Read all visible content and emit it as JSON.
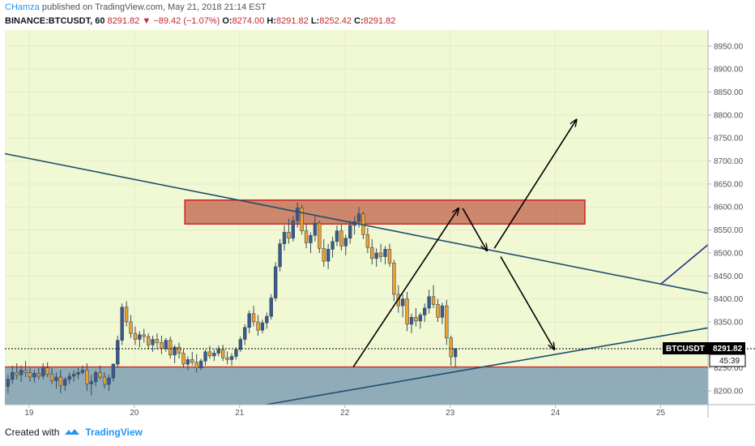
{
  "header": {
    "author": "CHamza",
    "published_text": "published on TradingView.com, May 21, 2018 21:14 EST",
    "symbol": "BINANCE:BTCUSDT, 60",
    "last": "8291.82",
    "down_arrow": "▼",
    "change": "−89.42 (−1.07%)",
    "open_label": "O:",
    "open": "8274.00",
    "high_label": "H:",
    "high": "8291.82",
    "low_label": "L:",
    "low": "8252.42",
    "close_label": "C:",
    "close": "8291.82"
  },
  "price_label": {
    "symbol": "BTCUSDT",
    "price": "8291.82",
    "countdown": "45:39"
  },
  "footer": {
    "created_with": "Created with",
    "brand": "TradingView",
    "logo_icon": "tradingview-logo-icon"
  },
  "colors": {
    "plot_bg": "#f0f9d3",
    "up": "#3a5a8c",
    "down": "#f0a030",
    "resistance_fill": "#c0604a",
    "resistance_border": "#cc2222",
    "support_fill": "#7f9fb3",
    "trend_line": "#1f4e6e"
  },
  "chart_data": {
    "type": "candlestick",
    "x_ticks": [
      "19",
      "20",
      "21",
      "22",
      "23",
      "24",
      "25"
    ],
    "y_ticks": [
      8200,
      8250,
      8300,
      8350,
      8400,
      8450,
      8500,
      8550,
      8600,
      8650,
      8700,
      8750,
      8800,
      8850,
      8900,
      8950
    ],
    "y_tick_labels": [
      "8200.00",
      "8250.00",
      "8300.00",
      "8350.00",
      "8400.00",
      "8450.00",
      "8500.00",
      "8550.00",
      "8600.00",
      "8650.00",
      "8700.00",
      "8750.00",
      "8800.00",
      "8850.00",
      "8900.00",
      "8950.00"
    ],
    "ylim": [
      8170,
      8985
    ],
    "x_range_days": [
      18.77,
      25.45
    ],
    "candle_interval_hours": 1,
    "first_candle_day": 18.8,
    "candles": [
      [
        8210,
        8235,
        8195,
        8225
      ],
      [
        8225,
        8255,
        8215,
        8240
      ],
      [
        8240,
        8260,
        8225,
        8235
      ],
      [
        8235,
        8255,
        8220,
        8245
      ],
      [
        8245,
        8265,
        8230,
        8240
      ],
      [
        8240,
        8252,
        8220,
        8230
      ],
      [
        8230,
        8245,
        8218,
        8238
      ],
      [
        8238,
        8250,
        8225,
        8232
      ],
      [
        8232,
        8260,
        8225,
        8250
      ],
      [
        8250,
        8262,
        8230,
        8236
      ],
      [
        8236,
        8250,
        8215,
        8222
      ],
      [
        8222,
        8240,
        8205,
        8230
      ],
      [
        8230,
        8245,
        8195,
        8212
      ],
      [
        8212,
        8230,
        8200,
        8225
      ],
      [
        8225,
        8240,
        8215,
        8232
      ],
      [
        8232,
        8245,
        8220,
        8236
      ],
      [
        8236,
        8250,
        8225,
        8240
      ],
      [
        8240,
        8255,
        8235,
        8245
      ],
      [
        8245,
        8260,
        8200,
        8215
      ],
      [
        8215,
        8235,
        8190,
        8220
      ],
      [
        8220,
        8245,
        8210,
        8240
      ],
      [
        8240,
        8255,
        8225,
        8230
      ],
      [
        8230,
        8240,
        8205,
        8214
      ],
      [
        8214,
        8235,
        8200,
        8228
      ],
      [
        8228,
        8260,
        8220,
        8258
      ],
      [
        8258,
        8320,
        8250,
        8310
      ],
      [
        8310,
        8390,
        8300,
        8382
      ],
      [
        8382,
        8395,
        8340,
        8350
      ],
      [
        8350,
        8365,
        8315,
        8325
      ],
      [
        8325,
        8340,
        8300,
        8312
      ],
      [
        8312,
        8330,
        8295,
        8322
      ],
      [
        8322,
        8335,
        8305,
        8318
      ],
      [
        8318,
        8325,
        8290,
        8300
      ],
      [
        8300,
        8320,
        8285,
        8312
      ],
      [
        8312,
        8325,
        8290,
        8305
      ],
      [
        8305,
        8320,
        8280,
        8292
      ],
      [
        8292,
        8315,
        8285,
        8310
      ],
      [
        8310,
        8318,
        8270,
        8278
      ],
      [
        8278,
        8300,
        8260,
        8295
      ],
      [
        8295,
        8305,
        8270,
        8282
      ],
      [
        8282,
        8290,
        8250,
        8258
      ],
      [
        8258,
        8275,
        8245,
        8268
      ],
      [
        8268,
        8285,
        8255,
        8262
      ],
      [
        8262,
        8280,
        8240,
        8250
      ],
      [
        8250,
        8270,
        8245,
        8265
      ],
      [
        8265,
        8290,
        8255,
        8285
      ],
      [
        8285,
        8298,
        8270,
        8276
      ],
      [
        8276,
        8290,
        8265,
        8282
      ],
      [
        8282,
        8298,
        8275,
        8290
      ],
      [
        8290,
        8300,
        8265,
        8272
      ],
      [
        8272,
        8286,
        8258,
        8268
      ],
      [
        8268,
        8282,
        8255,
        8275
      ],
      [
        8275,
        8295,
        8268,
        8290
      ],
      [
        8290,
        8318,
        8285,
        8312
      ],
      [
        8312,
        8345,
        8300,
        8338
      ],
      [
        8338,
        8375,
        8325,
        8368
      ],
      [
        8368,
        8385,
        8340,
        8350
      ],
      [
        8350,
        8365,
        8320,
        8332
      ],
      [
        8332,
        8355,
        8325,
        8348
      ],
      [
        8348,
        8370,
        8335,
        8362
      ],
      [
        8362,
        8410,
        8355,
        8402
      ],
      [
        8402,
        8480,
        8395,
        8470
      ],
      [
        8470,
        8530,
        8460,
        8520
      ],
      [
        8520,
        8560,
        8505,
        8545
      ],
      [
        8545,
        8575,
        8520,
        8532
      ],
      [
        8532,
        8580,
        8525,
        8570
      ],
      [
        8570,
        8610,
        8555,
        8598
      ],
      [
        8598,
        8605,
        8540,
        8548
      ],
      [
        8548,
        8565,
        8510,
        8522
      ],
      [
        8522,
        8545,
        8500,
        8538
      ],
      [
        8538,
        8580,
        8525,
        8565
      ],
      [
        8565,
        8570,
        8500,
        8510
      ],
      [
        8510,
        8530,
        8470,
        8482
      ],
      [
        8482,
        8520,
        8465,
        8508
      ],
      [
        8508,
        8535,
        8490,
        8525
      ],
      [
        8525,
        8560,
        8515,
        8548
      ],
      [
        8548,
        8562,
        8505,
        8515
      ],
      [
        8515,
        8540,
        8495,
        8532
      ],
      [
        8532,
        8570,
        8520,
        8560
      ],
      [
        8560,
        8580,
        8540,
        8568
      ],
      [
        8568,
        8600,
        8555,
        8585
      ],
      [
        8585,
        8590,
        8530,
        8540
      ],
      [
        8540,
        8555,
        8500,
        8512
      ],
      [
        8512,
        8530,
        8475,
        8488
      ],
      [
        8488,
        8510,
        8470,
        8500
      ],
      [
        8500,
        8520,
        8480,
        8492
      ],
      [
        8492,
        8515,
        8475,
        8508
      ],
      [
        8508,
        8520,
        8470,
        8478
      ],
      [
        8478,
        8485,
        8395,
        8410
      ],
      [
        8410,
        8430,
        8370,
        8385
      ],
      [
        8385,
        8410,
        8360,
        8400
      ],
      [
        8400,
        8415,
        8330,
        8345
      ],
      [
        8345,
        8368,
        8325,
        8360
      ],
      [
        8360,
        8380,
        8340,
        8352
      ],
      [
        8352,
        8370,
        8335,
        8365
      ],
      [
        8365,
        8390,
        8350,
        8380
      ],
      [
        8380,
        8420,
        8368,
        8405
      ],
      [
        8405,
        8430,
        8380,
        8388
      ],
      [
        8388,
        8400,
        8350,
        8360
      ],
      [
        8360,
        8392,
        8345,
        8385
      ],
      [
        8385,
        8398,
        8300,
        8315
      ],
      [
        8315,
        8320,
        8255,
        8274
      ],
      [
        8274,
        8292,
        8252,
        8292
      ]
    ],
    "resistance_zone": {
      "from_day": 20.48,
      "to_day": 24.28,
      "low": 8563,
      "high": 8615
    },
    "support_zone": {
      "from_day": 18.77,
      "to_day": 25.45,
      "low": 8170,
      "high": 8252
    },
    "trend_lines": [
      {
        "name": "descending-trendline",
        "points": [
          [
            18.77,
            8716
          ],
          [
            25.45,
            8412
          ]
        ]
      },
      {
        "name": "ascending-trendline",
        "points": [
          [
            21.25,
            8170
          ],
          [
            25.45,
            8337
          ]
        ]
      },
      {
        "name": "right-edge-line",
        "points": [
          [
            25.0,
            8432
          ],
          [
            25.45,
            8518
          ]
        ]
      }
    ],
    "arrows": [
      {
        "name": "arrow-up-1",
        "points": [
          [
            22.08,
            8252
          ],
          [
            23.08,
            8597
          ]
        ]
      },
      {
        "name": "arrow-down-1",
        "points": [
          [
            23.12,
            8597
          ],
          [
            23.35,
            8505
          ]
        ]
      },
      {
        "name": "arrow-up-2",
        "points": [
          [
            23.42,
            8510
          ],
          [
            24.2,
            8790
          ]
        ]
      },
      {
        "name": "arrow-down-2",
        "points": [
          [
            23.48,
            8492
          ],
          [
            23.99,
            8290
          ]
        ]
      }
    ],
    "last_price": 8291.82
  }
}
